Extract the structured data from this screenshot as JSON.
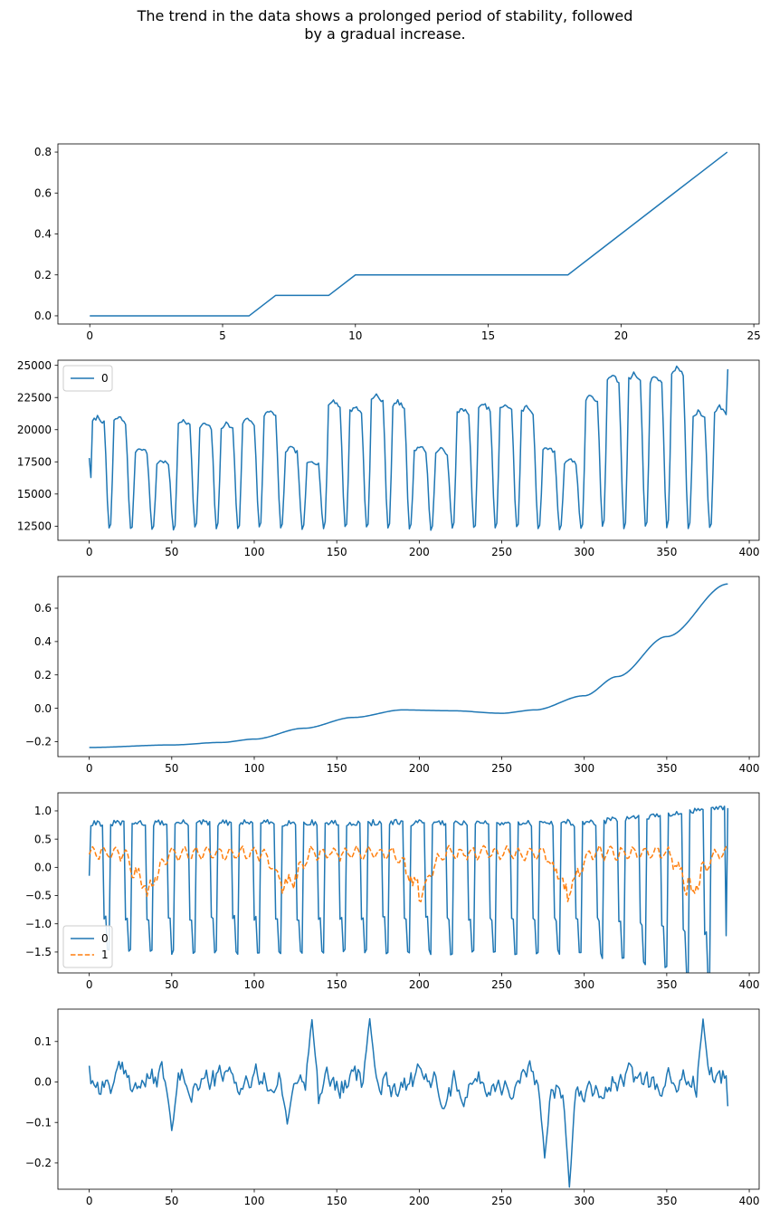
{
  "suptitle": {
    "line1": "The trend in the data shows a prolonged period of stability, followed",
    "line2": "by a gradual increase."
  },
  "colors": {
    "series0": "#1f77b4",
    "series1": "#ff7f0e"
  },
  "chart_data": [
    {
      "type": "line",
      "title": "",
      "xlabel": "",
      "ylabel": "",
      "xlim": [
        -1.2,
        25.2
      ],
      "ylim": [
        -0.04,
        0.84
      ],
      "xticks": [
        0,
        5,
        10,
        15,
        20,
        25
      ],
      "yticks": [
        0.0,
        0.2,
        0.4,
        0.6,
        0.8
      ],
      "ytick_labels": [
        "0.0",
        "0.2",
        "0.4",
        "0.6",
        "0.8"
      ],
      "grid": false,
      "legend": null,
      "series": [
        {
          "x": [
            0,
            1,
            2,
            3,
            4,
            5,
            6,
            7,
            8,
            9,
            10,
            11,
            12,
            13,
            14,
            15,
            16,
            17,
            18,
            19,
            20,
            21,
            22,
            23,
            24
          ],
          "values": [
            0,
            0,
            0,
            0,
            0,
            0,
            0,
            0.1,
            0.1,
            0.1,
            0.2,
            0.2,
            0.2,
            0.2,
            0.2,
            0.2,
            0.2,
            0.2,
            0.2,
            0.3,
            0.4,
            0.5,
            0.6,
            0.7,
            0.8
          ],
          "style": "solid"
        }
      ]
    },
    {
      "type": "line",
      "title": "",
      "xlabel": "",
      "ylabel": "",
      "xlim": [
        -19,
        406
      ],
      "ylim": [
        11400,
        25400
      ],
      "xticks": [
        0,
        50,
        100,
        150,
        200,
        250,
        300,
        350,
        400
      ],
      "yticks": [
        12500,
        15000,
        17500,
        20000,
        22500,
        25000
      ],
      "ytick_labels": [
        "12500",
        "15000",
        "17500",
        "20000",
        "22500",
        "25000"
      ],
      "grid": false,
      "legend": "upper-left",
      "generator": "periodic-weekly",
      "series": [
        {
          "name": "0",
          "n": 388,
          "period": 7,
          "style": "solid",
          "trough": 12200,
          "week_peaks": [
            21000,
            21000,
            18600,
            17600,
            20800,
            20500,
            20500,
            20900,
            21500,
            18600,
            17600,
            22300,
            21800,
            22700,
            22200,
            18700,
            18500,
            21700,
            22000,
            22000,
            21800,
            18600,
            17700,
            22700,
            24300,
            24400,
            24200,
            24900,
            21400,
            21800
          ]
        }
      ]
    },
    {
      "type": "line",
      "title": "",
      "xlabel": "",
      "ylabel": "",
      "xlim": [
        -19,
        406
      ],
      "ylim": [
        -0.29,
        0.79
      ],
      "xticks": [
        0,
        50,
        100,
        150,
        200,
        250,
        300,
        350,
        400
      ],
      "yticks": [
        -0.2,
        0.0,
        0.2,
        0.4,
        0.6
      ],
      "ytick_labels": [
        "−0.2",
        "0.0",
        "0.2",
        "0.4",
        "0.6"
      ],
      "grid": false,
      "legend": null,
      "generator": "interpolate",
      "series": [
        {
          "x": [
            0,
            50,
            80,
            100,
            130,
            160,
            190,
            220,
            250,
            270,
            300,
            320,
            350,
            387
          ],
          "values": [
            -0.235,
            -0.22,
            -0.205,
            -0.185,
            -0.12,
            -0.055,
            -0.01,
            -0.015,
            -0.03,
            -0.01,
            0.075,
            0.19,
            0.43,
            0.745
          ],
          "style": "solid"
        }
      ]
    },
    {
      "type": "line",
      "title": "",
      "xlabel": "",
      "ylabel": "",
      "xlim": [
        -19,
        406
      ],
      "ylim": [
        -1.87,
        1.32
      ],
      "xticks": [
        0,
        50,
        100,
        150,
        200,
        250,
        300,
        350,
        400
      ],
      "yticks": [
        -1.5,
        -1.0,
        -0.5,
        0.0,
        0.5,
        1.0
      ],
      "ytick_labels": [
        "−1.5",
        "−1.0",
        "−0.5",
        "0.0",
        "0.5",
        "1.0"
      ],
      "grid": false,
      "legend": "lower-left",
      "generator": "seasonal",
      "series": [
        {
          "name": "0",
          "n": 388,
          "period": 7,
          "style": "solid",
          "peak": 0.8,
          "trough": -1.5,
          "start": -0.15,
          "end": 1.05
        },
        {
          "name": "1",
          "n": 388,
          "period": 7,
          "style": "dashed",
          "base": 0.25,
          "dip_centers": [
            35,
            120,
            200,
            290,
            365
          ],
          "dip_depth": -0.85
        }
      ]
    },
    {
      "type": "line",
      "title": "",
      "xlabel": "",
      "ylabel": "",
      "xlim": [
        -19,
        406
      ],
      "ylim": [
        -0.265,
        0.18
      ],
      "xticks": [
        0,
        50,
        100,
        150,
        200,
        250,
        300,
        350,
        400
      ],
      "yticks": [
        -0.2,
        -0.1,
        0.0,
        0.1
      ],
      "ytick_labels": [
        "−0.2",
        "−0.1",
        "0.0",
        "0.1"
      ],
      "grid": false,
      "legend": null,
      "generator": "residual",
      "series": [
        {
          "n": 388,
          "style": "solid",
          "start": 0.04,
          "end": -0.06,
          "spikes": [
            [
              135,
              0.16
            ],
            [
              170,
              0.16
            ],
            [
              372,
              0.16
            ],
            [
              50,
              -0.12
            ],
            [
              291,
              -0.245
            ],
            [
              276,
              -0.185
            ],
            [
              120,
              -0.11
            ]
          ]
        }
      ]
    }
  ]
}
